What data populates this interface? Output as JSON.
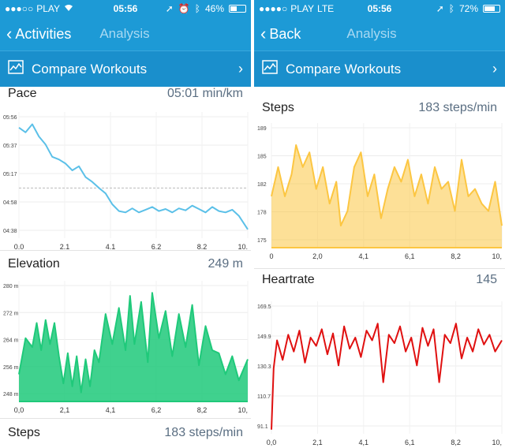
{
  "left": {
    "status": {
      "carrier": "PLAY",
      "network": "",
      "time": "05:56",
      "battery": "46%",
      "battery_level": 0.46
    },
    "nav": {
      "back_label": "Activities",
      "title": "Analysis"
    },
    "compare_label": "Compare Workouts",
    "pace": {
      "title": "Pace",
      "value": "05:01 min/km"
    },
    "elevation": {
      "title": "Elevation",
      "value": "249 m"
    },
    "steps": {
      "title": "Steps",
      "value": "183 steps/min"
    }
  },
  "right": {
    "status": {
      "carrier": "PLAY",
      "network": "LTE",
      "time": "05:56",
      "battery": "72%",
      "battery_level": 0.72
    },
    "nav": {
      "back_label": "Back",
      "title": "Analysis"
    },
    "compare_label": "Compare Workouts",
    "steps": {
      "title": "Steps",
      "value": "183 steps/min"
    },
    "heartrate": {
      "title": "Heartrate",
      "value": "145"
    }
  },
  "chart_data": [
    {
      "type": "line",
      "name": "pace",
      "x_ticks": [
        "0,0",
        "2,1",
        "4,1",
        "6,2",
        "8,2",
        "10,"
      ],
      "y_ticks": [
        "05:56",
        "05:37",
        "05:17",
        "04:58",
        "04:38"
      ],
      "x": [
        0.0,
        0.3,
        0.6,
        0.9,
        1.2,
        1.5,
        1.8,
        2.1,
        2.4,
        2.7,
        3.0,
        3.3,
        3.6,
        3.9,
        4.2,
        4.5,
        4.8,
        5.1,
        5.4,
        5.7,
        6.0,
        6.3,
        6.6,
        6.9,
        7.2,
        7.5,
        7.8,
        8.1,
        8.4,
        8.7,
        9.0,
        9.3,
        9.6,
        9.9,
        10.3
      ],
      "values": [
        5.85,
        5.78,
        5.9,
        5.72,
        5.6,
        5.42,
        5.38,
        5.32,
        5.22,
        5.28,
        5.12,
        5.05,
        4.96,
        4.88,
        4.72,
        4.62,
        4.6,
        4.66,
        4.6,
        4.64,
        4.68,
        4.62,
        4.65,
        4.6,
        4.66,
        4.63,
        4.7,
        4.65,
        4.6,
        4.68,
        4.62,
        4.6,
        4.64,
        4.55,
        4.35
      ],
      "ylim": [
        4.22,
        6.08
      ],
      "xlim": [
        0,
        10.3
      ],
      "reference_line": 4.96,
      "color": "#5bc0e8"
    },
    {
      "type": "area",
      "name": "elevation",
      "x_ticks": [
        "0,0",
        "2,1",
        "4,1",
        "6,2",
        "8,2",
        "10,"
      ],
      "y_ticks": [
        "280 m",
        "272 m",
        "264 m",
        "256 m",
        "248 m"
      ],
      "x": [
        0.0,
        0.3,
        0.6,
        0.8,
        1.0,
        1.2,
        1.4,
        1.6,
        1.8,
        2.0,
        2.2,
        2.4,
        2.6,
        2.8,
        3.0,
        3.2,
        3.4,
        3.6,
        3.9,
        4.2,
        4.5,
        4.8,
        5.0,
        5.2,
        5.5,
        5.8,
        6.0,
        6.3,
        6.6,
        6.9,
        7.2,
        7.5,
        7.8,
        8.1,
        8.4,
        8.7,
        9.0,
        9.3,
        9.6,
        9.9,
        10.3
      ],
      "values": [
        250,
        262,
        259,
        267,
        258,
        268,
        260,
        267,
        256,
        247,
        257,
        246,
        256,
        244,
        255,
        246,
        258,
        254,
        270,
        260,
        272,
        258,
        276,
        260,
        274,
        254,
        277,
        262,
        271,
        256,
        270,
        259,
        273,
        253,
        266,
        258,
        257,
        250,
        256,
        248,
        255
      ],
      "ylim": [
        241,
        281
      ],
      "xlim": [
        0,
        10.3
      ],
      "color": "#1fc97a"
    },
    {
      "type": "area",
      "name": "steps",
      "x_ticks": [
        "0",
        "2,0",
        "4,1",
        "6,1",
        "8,2",
        "10,"
      ],
      "y_ticks": [
        "189",
        "185",
        "182",
        "178",
        "175"
      ],
      "x": [
        0.0,
        0.3,
        0.6,
        0.9,
        1.1,
        1.4,
        1.7,
        2.0,
        2.3,
        2.6,
        2.9,
        3.1,
        3.4,
        3.7,
        4.0,
        4.3,
        4.6,
        4.9,
        5.2,
        5.5,
        5.8,
        6.1,
        6.4,
        6.7,
        7.0,
        7.3,
        7.6,
        7.9,
        8.2,
        8.5,
        8.8,
        9.1,
        9.4,
        9.7,
        10.0,
        10.3
      ],
      "values": [
        180,
        184,
        180,
        183,
        187,
        184,
        186,
        181,
        184,
        179,
        182,
        176,
        178,
        184,
        186,
        180,
        183,
        177,
        181,
        184,
        182,
        185,
        180,
        183,
        179,
        184,
        181,
        182,
        178,
        185,
        180,
        181,
        179,
        178,
        182,
        176
      ],
      "ylim": [
        173,
        190
      ],
      "xlim": [
        0,
        10.3
      ],
      "color": "#fcc642"
    },
    {
      "type": "line",
      "name": "heartrate",
      "x_ticks": [
        "0,0",
        "2,1",
        "4,1",
        "6,1",
        "8,2",
        "10,"
      ],
      "y_ticks": [
        "169.5",
        "149.9",
        "130.3",
        "110.7",
        "91.1"
      ],
      "x": [
        0.0,
        0.1,
        0.25,
        0.5,
        0.75,
        1.0,
        1.25,
        1.5,
        1.75,
        2.0,
        2.25,
        2.5,
        2.75,
        3.0,
        3.25,
        3.5,
        3.75,
        4.0,
        4.25,
        4.5,
        4.75,
        5.0,
        5.25,
        5.5,
        5.75,
        6.0,
        6.25,
        6.5,
        6.75,
        7.0,
        7.25,
        7.5,
        7.75,
        8.0,
        8.25,
        8.5,
        8.75,
        9.0,
        9.25,
        9.5,
        9.75,
        10.0,
        10.3
      ],
      "values": [
        84,
        128,
        148,
        134,
        152,
        140,
        155,
        132,
        150,
        144,
        156,
        138,
        153,
        130,
        158,
        142,
        150,
        136,
        155,
        148,
        160,
        118,
        152,
        146,
        158,
        140,
        150,
        130,
        157,
        144,
        156,
        118,
        152,
        146,
        160,
        135,
        150,
        140,
        156,
        145,
        152,
        140,
        148
      ],
      "ylim": [
        81,
        176
      ],
      "xlim": [
        0,
        10.3
      ],
      "color": "#e01010"
    }
  ]
}
